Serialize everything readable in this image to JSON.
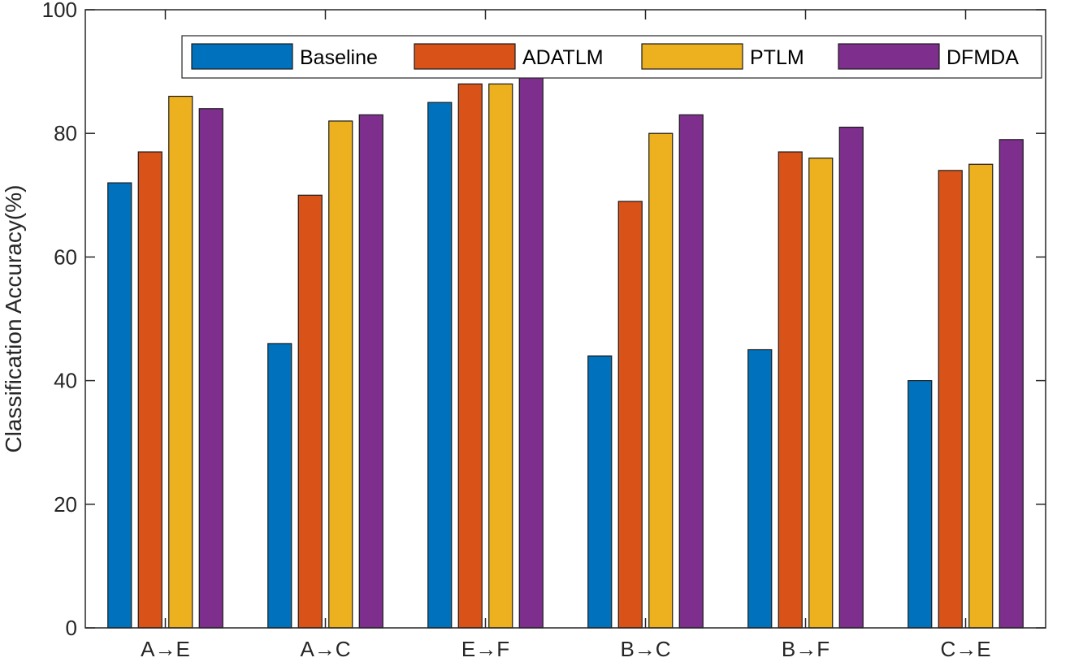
{
  "chart_data": {
    "type": "bar",
    "title": "",
    "xlabel": "",
    "ylabel": "Classification Accuracy(%)",
    "ylim": [
      0,
      100
    ],
    "yticks": [
      0,
      20,
      40,
      60,
      80,
      100
    ],
    "grid": false,
    "legend_position": "top-right",
    "categories": [
      "A→E",
      "A→C",
      "E→F",
      "B→C",
      "B→F",
      "C→E"
    ],
    "series": [
      {
        "name": "Baseline",
        "color": "#0072BD",
        "values": [
          72,
          46,
          85,
          44,
          45,
          40
        ]
      },
      {
        "name": "ADATLM",
        "color": "#D95319",
        "values": [
          77,
          70,
          88,
          69,
          77,
          74
        ]
      },
      {
        "name": "PTLM",
        "color": "#EDB120",
        "values": [
          86,
          82,
          88,
          80,
          76,
          75
        ]
      },
      {
        "name": "DFMDA",
        "color": "#7E2F8E",
        "values": [
          84,
          83,
          89,
          83,
          81,
          79
        ]
      }
    ]
  }
}
